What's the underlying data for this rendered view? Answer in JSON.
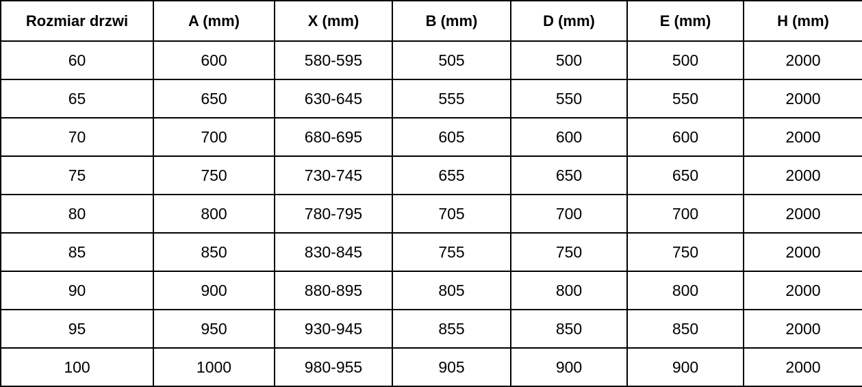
{
  "colors": {
    "background": "#ffffff",
    "border": "#000000",
    "text": "#000000"
  },
  "chart_data": {
    "type": "table",
    "title": "",
    "columns": [
      "Rozmiar drzwi",
      "A (mm)",
      "X (mm)",
      "B (mm)",
      "D (mm)",
      "E (mm)",
      "H (mm)"
    ],
    "rows": [
      [
        "60",
        "600",
        "580-595",
        "505",
        "500",
        "500",
        "2000"
      ],
      [
        "65",
        "650",
        "630-645",
        "555",
        "550",
        "550",
        "2000"
      ],
      [
        "70",
        "700",
        "680-695",
        "605",
        "600",
        "600",
        "2000"
      ],
      [
        "75",
        "750",
        "730-745",
        "655",
        "650",
        "650",
        "2000"
      ],
      [
        "80",
        "800",
        "780-795",
        "705",
        "700",
        "700",
        "2000"
      ],
      [
        "85",
        "850",
        "830-845",
        "755",
        "750",
        "750",
        "2000"
      ],
      [
        "90",
        "900",
        "880-895",
        "805",
        "800",
        "800",
        "2000"
      ],
      [
        "95",
        "950",
        "930-945",
        "855",
        "850",
        "850",
        "2000"
      ],
      [
        "100",
        "1000",
        "980-955",
        "905",
        "900",
        "900",
        "2000"
      ]
    ]
  }
}
